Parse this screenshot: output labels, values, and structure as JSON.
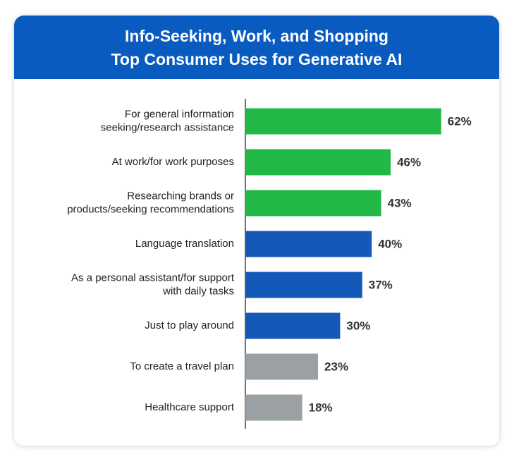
{
  "chart_data": {
    "type": "bar",
    "title": [
      "Info-Seeking, Work, and Shopping",
      "Top Consumer Uses for Generative AI"
    ],
    "categories": [
      [
        "For general information",
        "seeking/research assistance"
      ],
      [
        "At work/for work purposes"
      ],
      [
        "Researching brands or",
        "products/seeking recommendations"
      ],
      [
        "Language translation"
      ],
      [
        "As a personal assistant/for support",
        "with daily tasks"
      ],
      [
        "Just to play around"
      ],
      [
        "To create a travel plan"
      ],
      [
        "Healthcare support"
      ]
    ],
    "values": [
      62,
      46,
      43,
      40,
      37,
      30,
      23,
      18
    ],
    "value_labels": [
      "62%",
      "46%",
      "43%",
      "40%",
      "37%",
      "30%",
      "23%",
      "18%"
    ],
    "colors": [
      "#22b845",
      "#22b845",
      "#22b845",
      "#1458b8",
      "#1458b8",
      "#1458b8",
      "#9aa0a3",
      "#9aa0a3"
    ]
  }
}
